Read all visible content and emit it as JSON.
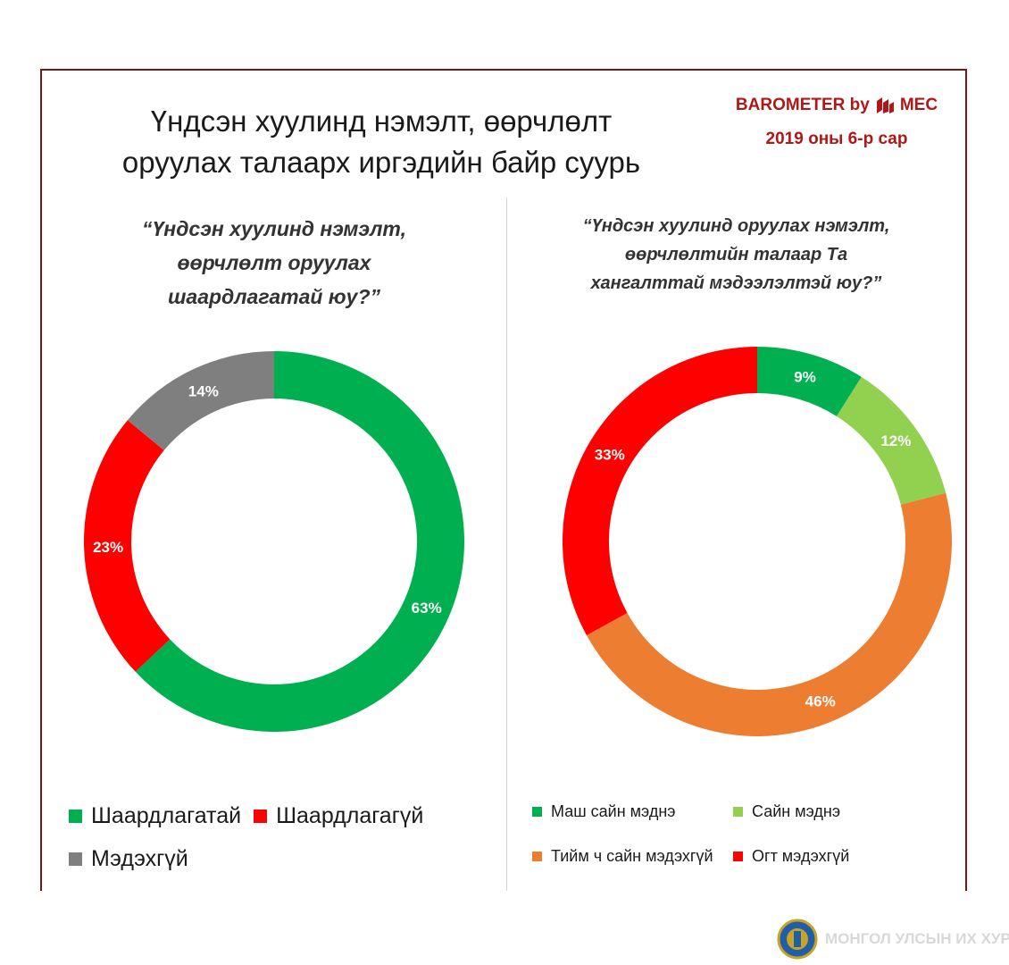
{
  "title": "Үндсэн хуулинд нэмэлт, өөрчлөлт оруулах талаарх иргэдийн байр суурь",
  "title_lines": [
    "Үндсэн хуулинд нэмэлт, өөрчлөлт",
    "оруулах талаарх иргэдийн байр суурь"
  ],
  "brand": {
    "name": "BAROMETER by",
    "logo_text": "MEC",
    "date": "2019 оны 6-р сар",
    "color": "#b01818"
  },
  "watermark": "МОНГОЛ УЛСЫН ИХ ХУРАЛ",
  "chart_data": [
    {
      "type": "pie",
      "donut": true,
      "title": "“Үндсэн хуулинд нэмэлт, өөрчлөлт оруулах шаардлагатай юу?”",
      "title_lines": [
        "“Үндсэн хуулинд нэмэлт,",
        "өөрчлөлт оруулах",
        "шаардлагатай юу?”"
      ],
      "categories": [
        "Шаардлагатай",
        "Шаардлагагүй",
        "Мэдэхгүй"
      ],
      "values": [
        63,
        23,
        14
      ],
      "labels": [
        "63%",
        "23%",
        "14%"
      ],
      "colors": [
        "#00b050",
        "#ff0000",
        "#7f7f7f"
      ],
      "legend_position": "bottom"
    },
    {
      "type": "pie",
      "donut": true,
      "title": "“Үндсэн хуулинд оруулах нэмэлт, өөрчлөлтийн талаар Та хангалттай мэдээлэлтэй юу?”",
      "title_lines": [
        "“Үндсэн хуулинд оруулах нэмэлт,",
        "өөрчлөлтийн талаар Та",
        "хангалттай мэдээлэлтэй юу?”"
      ],
      "categories": [
        "Маш сайн мэднэ",
        "Сайн мэднэ",
        "Тийм ч сайн мэдэхгүй",
        "Огт мэдэхгүй"
      ],
      "values": [
        9,
        12,
        46,
        33
      ],
      "labels": [
        "9%",
        "12%",
        "46%",
        "33%"
      ],
      "colors": [
        "#00b050",
        "#92d050",
        "#ed7d31",
        "#ff0000"
      ],
      "legend_position": "bottom"
    }
  ]
}
